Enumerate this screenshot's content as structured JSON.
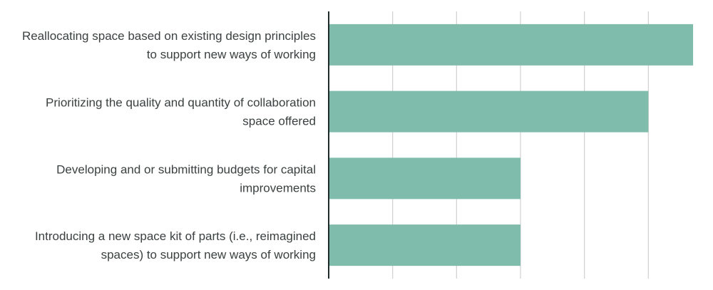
{
  "chart_data": {
    "type": "bar",
    "orientation": "horizontal",
    "categories": [
      [
        "Reallocating space based on existing design principles",
        "to support new ways of working"
      ],
      [
        "Prioritizing the quality and quantity of collaboration",
        "space offered"
      ],
      [
        "Developing and or submitting budgets for capital",
        "improvements"
      ],
      [
        "Introducing a new space kit of parts (i.e., reimagined",
        "spaces) to support new ways of working"
      ]
    ],
    "values": [
      57,
      50,
      30,
      30
    ],
    "xlim": [
      0,
      60
    ],
    "grid": true,
    "gridline_values": [
      10,
      20,
      30,
      40,
      50
    ],
    "title": "",
    "xlabel": "",
    "ylabel": "",
    "colors": {
      "bar": "#80bcac",
      "axis": "#1f2a2a",
      "grid": "#d0d0d0",
      "label": "#3a4140"
    }
  }
}
